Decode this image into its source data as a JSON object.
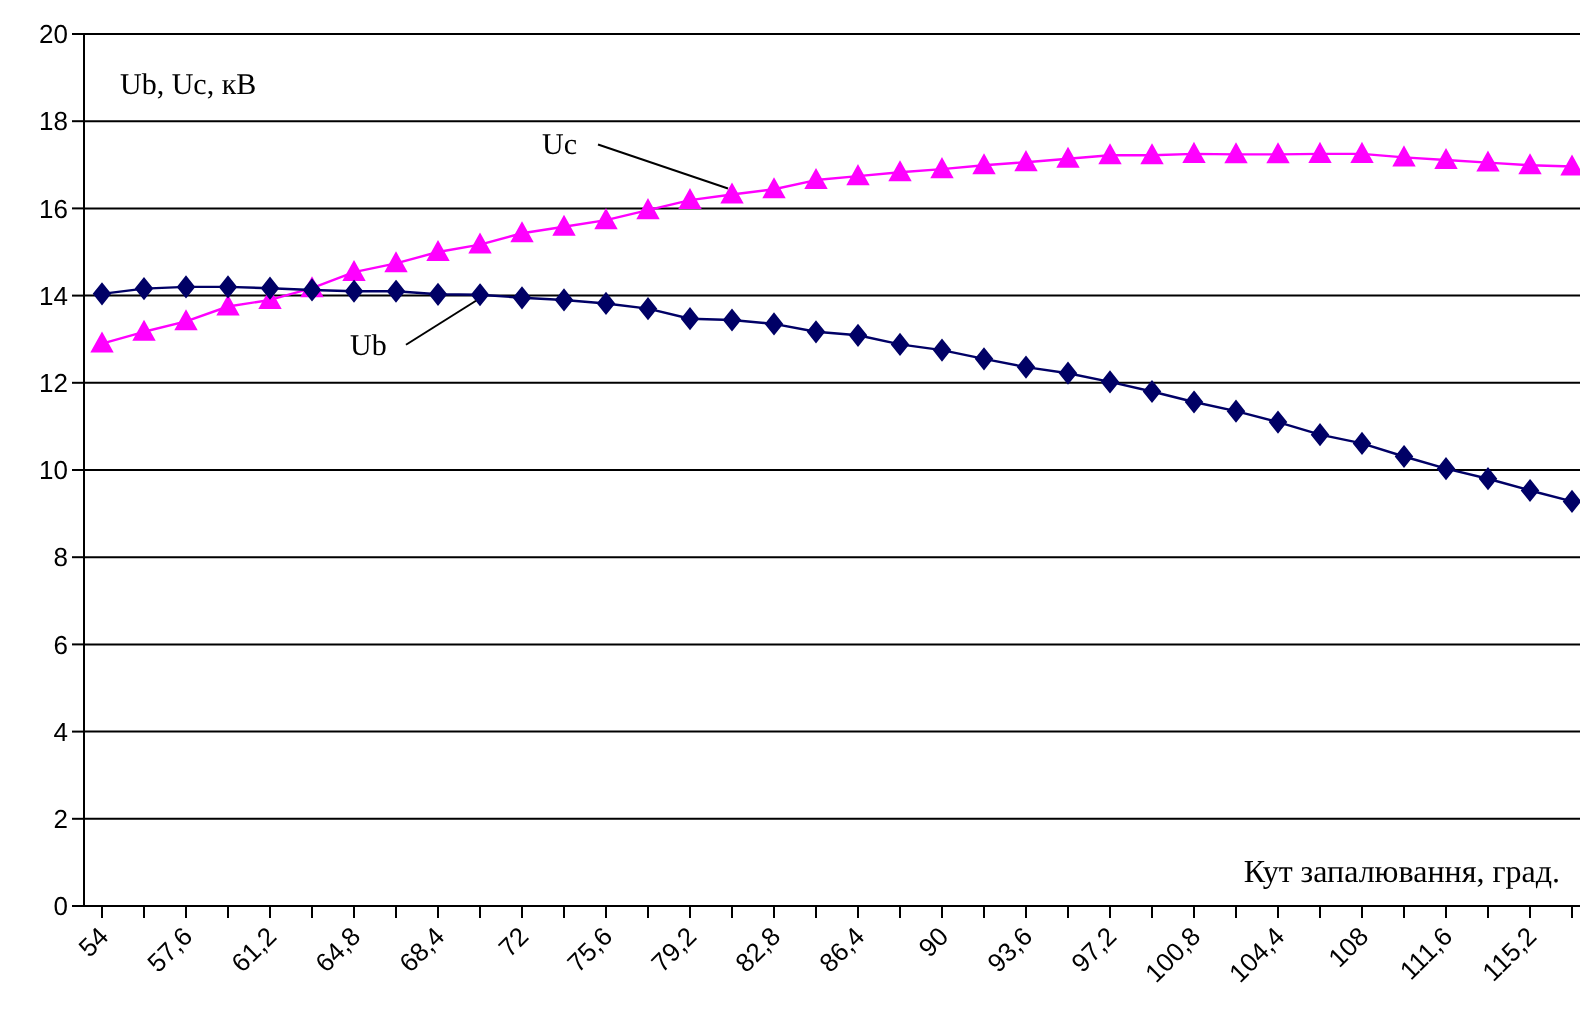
{
  "chart_data": {
    "type": "line",
    "ylabel": "Ub, Uc, кВ",
    "xlabel": "Кут запалювання, град.",
    "categories": [
      "54",
      null,
      "57,6",
      null,
      "61,2",
      null,
      "64,8",
      null,
      "68,4",
      null,
      "72",
      null,
      "75,6",
      null,
      "79,2",
      null,
      "82,8",
      null,
      "86,4",
      null,
      "90",
      null,
      "93,6",
      null,
      "97,2",
      null,
      "100,8",
      null,
      "104,4",
      null,
      "108",
      null,
      "111,6",
      null,
      "115,2",
      null
    ],
    "series": [
      {
        "name": "Ub",
        "color": "#000066",
        "marker": "diamond",
        "values": [
          14.04,
          14.16,
          14.2,
          14.2,
          14.17,
          14.13,
          14.1,
          14.1,
          14.03,
          14.02,
          13.95,
          13.9,
          13.82,
          13.7,
          13.47,
          13.44,
          13.35,
          13.17,
          13.09,
          12.88,
          12.75,
          12.55,
          12.36,
          12.22,
          12.02,
          11.8,
          11.56,
          11.35,
          11.1,
          10.81,
          10.61,
          10.31,
          10.03,
          9.8,
          9.53,
          9.28
        ]
      },
      {
        "name": "Uc",
        "color": "#ff00ff",
        "marker": "triangle",
        "values": [
          12.9,
          13.17,
          13.41,
          13.75,
          13.9,
          14.17,
          14.54,
          14.74,
          15.0,
          15.17,
          15.43,
          15.58,
          15.73,
          15.96,
          16.19,
          16.32,
          16.44,
          16.65,
          16.74,
          16.83,
          16.9,
          16.99,
          17.06,
          17.14,
          17.22,
          17.22,
          17.25,
          17.24,
          17.24,
          17.25,
          17.25,
          17.17,
          17.11,
          17.05,
          16.99,
          16.96
        ]
      }
    ],
    "ylim": [
      0,
      20
    ],
    "yticks": [
      0,
      2,
      4,
      6,
      8,
      10,
      12,
      14,
      16,
      18,
      20
    ],
    "grid": "y",
    "legend": false,
    "line_style": "solid"
  }
}
